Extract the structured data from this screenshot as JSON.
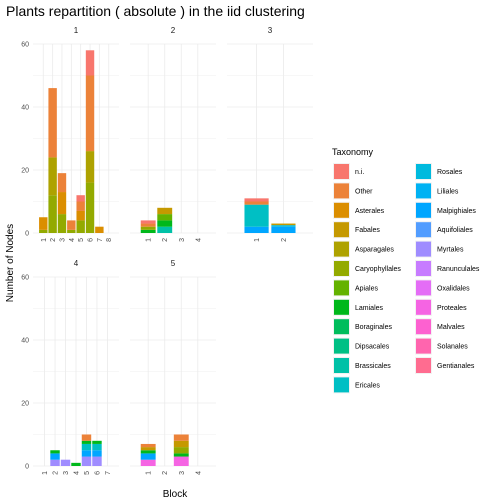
{
  "chart_data": {
    "type": "bar",
    "stacked": true,
    "title": "Plants repartition ( absolute ) in the iid clustering",
    "xlabel": "Block",
    "ylabel": "Number of Nodes",
    "ylim": [
      0,
      60
    ],
    "y_ticks": [
      0,
      20,
      40,
      60
    ],
    "grid": true,
    "legend_position": "right",
    "legend": {
      "title": "Taxonomy",
      "entries": [
        {
          "name": "n.i.",
          "color": "#F8766D"
        },
        {
          "name": "Other",
          "color": "#EC8239"
        },
        {
          "name": "Asterales",
          "color": "#DB8E00"
        },
        {
          "name": "Fabales",
          "color": "#C59900"
        },
        {
          "name": "Asparagales",
          "color": "#AEA200"
        },
        {
          "name": "Caryophyllales",
          "color": "#93AA00"
        },
        {
          "name": "Apiales",
          "color": "#64B200"
        },
        {
          "name": "Lamiales",
          "color": "#00B81B"
        },
        {
          "name": "Boraginales",
          "color": "#00BD5C"
        },
        {
          "name": "Dipsacales",
          "color": "#00C085"
        },
        {
          "name": "Brassicales",
          "color": "#00C1A7"
        },
        {
          "name": "Ericales",
          "color": "#00BFC4"
        },
        {
          "name": "Rosales",
          "color": "#00BADE"
        },
        {
          "name": "Liliales",
          "color": "#00B2F3"
        },
        {
          "name": "Malpighiales",
          "color": "#00A6FF"
        },
        {
          "name": "Aquifoliales",
          "color": "#529DFF"
        },
        {
          "name": "Myrtales",
          "color": "#9F8CFF"
        },
        {
          "name": "Ranunculales",
          "color": "#C77CFF"
        },
        {
          "name": "Oxalidales",
          "color": "#E46DF6"
        },
        {
          "name": "Proteales",
          "color": "#F564E3"
        },
        {
          "name": "Malvales",
          "color": "#FD61D0"
        },
        {
          "name": "Solanales",
          "color": "#FF65AE"
        },
        {
          "name": "Gentianales",
          "color": "#FF6C90"
        }
      ]
    },
    "panels": [
      {
        "label": "1",
        "x_ticks": [
          "1",
          "2",
          "3",
          "4",
          "5",
          "6",
          "7",
          "8"
        ],
        "bars": [
          {
            "x": "1",
            "segments": [
              {
                "taxon": "Caryophyllales",
                "value": 1
              },
              {
                "taxon": "Asterales",
                "value": 4
              }
            ]
          },
          {
            "x": "2",
            "segments": [
              {
                "taxon": "Caryophyllales",
                "value": 12
              },
              {
                "taxon": "Asparagales",
                "value": 12
              },
              {
                "taxon": "Other",
                "value": 22
              }
            ]
          },
          {
            "x": "3",
            "segments": [
              {
                "taxon": "Caryophyllales",
                "value": 6
              },
              {
                "taxon": "Asterales",
                "value": 7
              },
              {
                "taxon": "Other",
                "value": 6
              }
            ]
          },
          {
            "x": "4",
            "segments": [
              {
                "taxon": "Caryophyllales",
                "value": 1
              },
              {
                "taxon": "Other",
                "value": 3
              }
            ]
          },
          {
            "x": "5",
            "segments": [
              {
                "taxon": "Caryophyllales",
                "value": 4
              },
              {
                "taxon": "Asterales",
                "value": 3
              },
              {
                "taxon": "Other",
                "value": 3
              },
              {
                "taxon": "n.i.",
                "value": 2
              }
            ]
          },
          {
            "x": "6",
            "segments": [
              {
                "taxon": "Caryophyllales",
                "value": 16
              },
              {
                "taxon": "Asparagales",
                "value": 10
              },
              {
                "taxon": "Other",
                "value": 24
              },
              {
                "taxon": "n.i.",
                "value": 8
              }
            ]
          },
          {
            "x": "7",
            "segments": [
              {
                "taxon": "Asterales",
                "value": 2
              }
            ]
          },
          {
            "x": "8",
            "segments": []
          }
        ]
      },
      {
        "label": "2",
        "x_ticks": [
          "1",
          "2",
          "3",
          "4"
        ],
        "bars": [
          {
            "x": "1",
            "segments": [
              {
                "taxon": "Lamiales",
                "value": 1
              },
              {
                "taxon": "Caryophyllales",
                "value": 1
              },
              {
                "taxon": "Other",
                "value": 1
              },
              {
                "taxon": "n.i.",
                "value": 1
              }
            ]
          },
          {
            "x": "2",
            "segments": [
              {
                "taxon": "Brassicales",
                "value": 2
              },
              {
                "taxon": "Lamiales",
                "value": 2
              },
              {
                "taxon": "Apiales",
                "value": 2
              },
              {
                "taxon": "Fabales",
                "value": 2
              }
            ]
          },
          {
            "x": "3",
            "segments": []
          },
          {
            "x": "4",
            "segments": []
          }
        ]
      },
      {
        "label": "3",
        "x_ticks": [
          "1",
          "2"
        ],
        "bars": [
          {
            "x": "1",
            "segments": [
              {
                "taxon": "Malpighiales",
                "value": 2
              },
              {
                "taxon": "Ericales",
                "value": 7
              },
              {
                "taxon": "Other",
                "value": 1
              },
              {
                "taxon": "n.i.",
                "value": 1
              }
            ]
          },
          {
            "x": "2",
            "segments": [
              {
                "taxon": "Malpighiales",
                "value": 2
              },
              {
                "taxon": "Rosales",
                "value": 0.5
              },
              {
                "taxon": "Fabales",
                "value": 0.5
              }
            ]
          }
        ]
      },
      {
        "label": "4",
        "x_ticks": [
          "1",
          "2",
          "3",
          "4",
          "5",
          "6",
          "7"
        ],
        "bars": [
          {
            "x": "1",
            "segments": []
          },
          {
            "x": "2",
            "segments": [
              {
                "taxon": "Myrtales",
                "value": 2
              },
              {
                "taxon": "Malpighiales",
                "value": 2
              },
              {
                "taxon": "Lamiales",
                "value": 1
              }
            ]
          },
          {
            "x": "3",
            "segments": [
              {
                "taxon": "Myrtales",
                "value": 2
              }
            ]
          },
          {
            "x": "4",
            "segments": [
              {
                "taxon": "Lamiales",
                "value": 1
              }
            ]
          },
          {
            "x": "5",
            "segments": [
              {
                "taxon": "Myrtales",
                "value": 3
              },
              {
                "taxon": "Malpighiales",
                "value": 2
              },
              {
                "taxon": "Ericales",
                "value": 2
              },
              {
                "taxon": "Lamiales",
                "value": 1
              },
              {
                "taxon": "Other",
                "value": 2
              }
            ]
          },
          {
            "x": "6",
            "segments": [
              {
                "taxon": "Myrtales",
                "value": 3
              },
              {
                "taxon": "Malpighiales",
                "value": 2
              },
              {
                "taxon": "Ericales",
                "value": 2
              },
              {
                "taxon": "Lamiales",
                "value": 1
              }
            ]
          },
          {
            "x": "7",
            "segments": []
          }
        ]
      },
      {
        "label": "5",
        "x_ticks": [
          "1",
          "2",
          "3",
          "4"
        ],
        "bars": [
          {
            "x": "1",
            "segments": [
              {
                "taxon": "Proteales",
                "value": 2
              },
              {
                "taxon": "Malpighiales",
                "value": 2
              },
              {
                "taxon": "Lamiales",
                "value": 1
              },
              {
                "taxon": "Fabales",
                "value": 1
              },
              {
                "taxon": "Other",
                "value": 1
              }
            ]
          },
          {
            "x": "2",
            "segments": []
          },
          {
            "x": "3",
            "segments": [
              {
                "taxon": "Proteales",
                "value": 3
              },
              {
                "taxon": "Lamiales",
                "value": 1
              },
              {
                "taxon": "Caryophyllales",
                "value": 2
              },
              {
                "taxon": "Fabales",
                "value": 2
              },
              {
                "taxon": "Other",
                "value": 2
              }
            ]
          },
          {
            "x": "4",
            "segments": []
          }
        ]
      }
    ]
  }
}
